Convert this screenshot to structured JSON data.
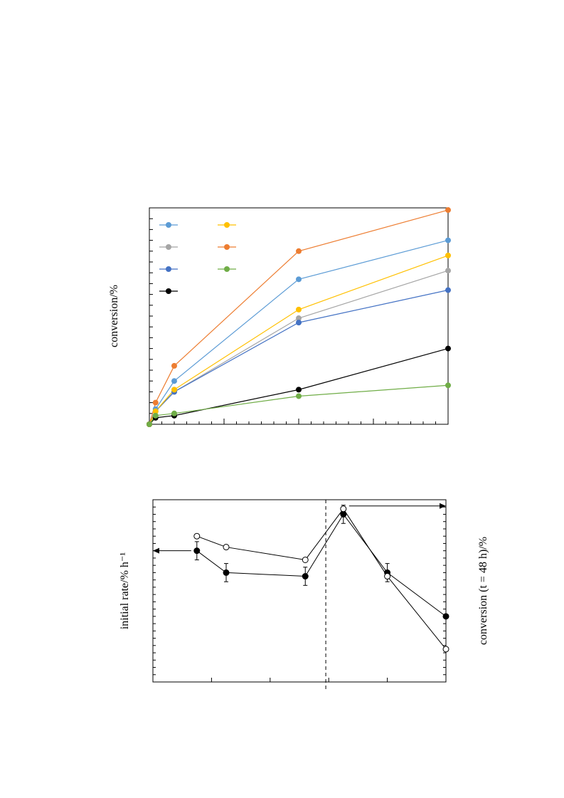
{
  "chart_data": [
    {
      "type": "line",
      "title": "",
      "xlabel": "",
      "ylabel": "conversion/%",
      "xlim": [
        0,
        72
      ],
      "ylim": [
        0,
        100
      ],
      "legend": "top-left",
      "grid": false,
      "series": [
        {
          "name": "",
          "color": "#5b9bd5",
          "x": [
            0,
            1.5,
            6,
            36,
            72
          ],
          "y": [
            0,
            7,
            20,
            67,
            85
          ]
        },
        {
          "name": "",
          "color": "#a5a5a5",
          "x": [
            0,
            1.5,
            6,
            36,
            72
          ],
          "y": [
            0,
            6,
            15,
            49,
            71
          ]
        },
        {
          "name": "",
          "color": "#4472c4",
          "x": [
            0,
            1.5,
            6,
            36,
            72
          ],
          "y": [
            0,
            6,
            15,
            47,
            62
          ]
        },
        {
          "name": "",
          "color": "#000000",
          "x": [
            0,
            1.5,
            6,
            36,
            72
          ],
          "y": [
            0,
            3,
            4,
            16,
            35
          ]
        },
        {
          "name": "",
          "color": "#ffc000",
          "x": [
            0,
            1.5,
            6,
            36,
            72
          ],
          "y": [
            0,
            6,
            16,
            53,
            78
          ]
        },
        {
          "name": "",
          "color": "#ed7d31",
          "x": [
            0,
            1.5,
            6,
            36,
            72
          ],
          "y": [
            0,
            10,
            27,
            80,
            99
          ]
        },
        {
          "name": "",
          "color": "#70ad47",
          "x": [
            0,
            1.5,
            6,
            36,
            72
          ],
          "y": [
            0,
            4,
            5,
            13,
            18
          ]
        }
      ]
    },
    {
      "type": "line",
      "title": "",
      "xlabel": "",
      "ylabel": "initial rate/% h⁻¹",
      "y2label": "conversion (t = 48 h)/%",
      "xlim": [
        0,
        1
      ],
      "ylim": [
        0,
        1
      ],
      "grid": false,
      "series": [
        {
          "name": "",
          "axis": "left",
          "marker": "filled",
          "x": [
            0.15,
            0.25,
            0.52,
            0.65,
            0.8,
            1.0
          ],
          "y": [
            0.72,
            0.6,
            0.58,
            0.92,
            0.6,
            0.36
          ],
          "err": [
            0.05,
            0.05,
            0.05,
            0.05,
            0.05,
            0
          ]
        },
        {
          "name": "",
          "axis": "right",
          "marker": "open",
          "x": [
            0.15,
            0.25,
            0.52,
            0.65,
            0.8,
            1.0
          ],
          "y": [
            0.8,
            0.74,
            0.67,
            0.95,
            0.58,
            0.18
          ]
        }
      ],
      "divider_x": 0.59
    }
  ]
}
